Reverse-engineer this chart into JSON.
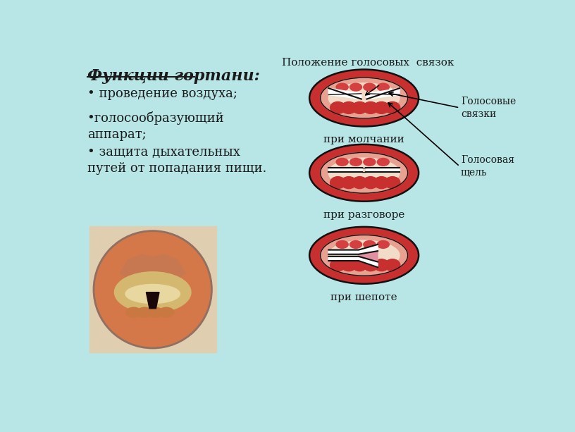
{
  "bg_color": "#b8e6e6",
  "title_text": "Функции гортани:",
  "bullet1": "• проведение воздуха;",
  "bullet2": "•голосообразующий\nаппарат;",
  "bullet3": "• защита дыхательных\nпутей от попадания пищи.",
  "diagram_title": "Положение голосовых  связок",
  "label1": "Голосовые\nсвязки",
  "label2": "Голосовая\nщель",
  "caption1": "при молчании",
  "caption2": "при разговоре",
  "caption3": "при шепоте",
  "text_color": "#1a1a1a",
  "red_outer": "#c83030",
  "red_mid": "#d44040",
  "pink_inner": "#e8a090",
  "cream_inner": "#f0dcc8",
  "white_cord": "#ffffff",
  "dark_line": "#111111",
  "photo_bg": "#d4784a",
  "photo_light": "#c8a070",
  "photo_cream": "#e0c890",
  "photo_dark": "#1a0808"
}
